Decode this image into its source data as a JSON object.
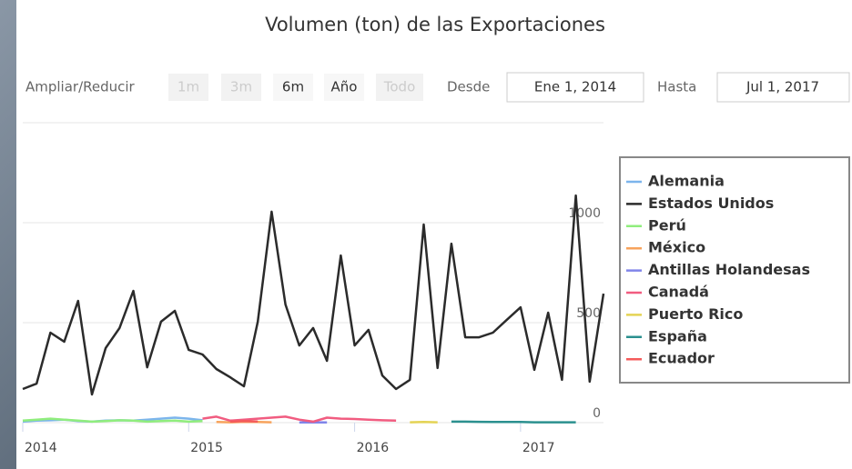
{
  "chart_data": {
    "type": "line",
    "title": "Volumen (ton) de las Exportaciones",
    "range_selector": {
      "zoom_label": "Ampliar/Reducir",
      "buttons": [
        {
          "label": "1m",
          "enabled": false
        },
        {
          "label": "3m",
          "enabled": false
        },
        {
          "label": "6m",
          "enabled": true
        },
        {
          "label": "Año",
          "enabled": true
        },
        {
          "label": "Todo",
          "enabled": false
        }
      ],
      "from_label": "Desde",
      "from": "Ene 1, 2014",
      "to_label": "Hasta",
      "to": "Jul 1, 2017"
    },
    "x": [
      "2014-01",
      "2014-02",
      "2014-03",
      "2014-04",
      "2014-05",
      "2014-06",
      "2014-07",
      "2014-08",
      "2014-09",
      "2014-10",
      "2014-11",
      "2014-12",
      "2015-01",
      "2015-02",
      "2015-03",
      "2015-04",
      "2015-05",
      "2015-06",
      "2015-07",
      "2015-08",
      "2015-09",
      "2015-10",
      "2015-11",
      "2015-12",
      "2016-01",
      "2016-02",
      "2016-03",
      "2016-04",
      "2016-05",
      "2016-06",
      "2016-07",
      "2016-08",
      "2016-09",
      "2016-10",
      "2016-11",
      "2016-12",
      "2017-01",
      "2017-02",
      "2017-03",
      "2017-04",
      "2017-05",
      "2017-06",
      "2017-07"
    ],
    "xlim": [
      "2014-01",
      "2017-07"
    ],
    "xticks": [
      2014,
      2015,
      2016,
      2017
    ],
    "ylim": [
      0,
      1500
    ],
    "yticks": [
      0,
      500,
      1000
    ],
    "grid": true,
    "legend": "right",
    "series": [
      {
        "name": "Alemania",
        "color": "#7cb5ec",
        "values": [
          5,
          10,
          12,
          15,
          8,
          5,
          10,
          12,
          10,
          15,
          20,
          25,
          20,
          12,
          null,
          null,
          null,
          null,
          null,
          null,
          null,
          null,
          null,
          null,
          null,
          null,
          null,
          null,
          null,
          null,
          null,
          null,
          null,
          null,
          null,
          null,
          null,
          null,
          null,
          null,
          null,
          null,
          null
        ]
      },
      {
        "name": "Estados Unidos",
        "color": "#2b2b2b",
        "values": [
          168,
          195,
          450,
          405,
          609,
          141,
          373,
          473,
          659,
          277,
          505,
          559,
          364,
          341,
          268,
          227,
          182,
          505,
          1055,
          591,
          386,
          473,
          309,
          836,
          386,
          464,
          236,
          168,
          214,
          991,
          273,
          895,
          427,
          427,
          450,
          514,
          577,
          264,
          550,
          214,
          1136,
          205,
          645
        ]
      },
      {
        "name": "Perú",
        "color": "#90ed7d",
        "values": [
          10,
          15,
          20,
          15,
          10,
          5,
          8,
          12,
          10,
          5,
          8,
          10,
          5,
          8,
          null,
          null,
          null,
          null,
          null,
          null,
          null,
          null,
          null,
          null,
          null,
          null,
          null,
          null,
          null,
          null,
          null,
          null,
          null,
          null,
          null,
          null,
          null,
          null,
          null,
          null,
          null,
          null,
          null
        ]
      },
      {
        "name": "México",
        "color": "#f7a35c",
        "values": [
          null,
          null,
          null,
          null,
          null,
          null,
          null,
          null,
          null,
          null,
          null,
          null,
          null,
          null,
          3,
          2,
          4,
          3,
          2,
          null,
          null,
          null,
          null,
          null,
          null,
          null,
          null,
          null,
          null,
          null,
          null,
          null,
          null,
          null,
          null,
          null,
          null,
          null,
          null,
          null,
          null,
          null,
          null
        ]
      },
      {
        "name": "Antillas Holandesas",
        "color": "#8085e9",
        "values": [
          null,
          null,
          null,
          null,
          null,
          null,
          null,
          null,
          null,
          null,
          null,
          null,
          null,
          null,
          null,
          null,
          null,
          null,
          null,
          null,
          1,
          2,
          1,
          null,
          null,
          null,
          null,
          null,
          null,
          null,
          null,
          null,
          null,
          null,
          null,
          null,
          null,
          null,
          null,
          null,
          null,
          null,
          null
        ]
      },
      {
        "name": "Canadá",
        "color": "#f15c80",
        "values": [
          null,
          null,
          null,
          null,
          null,
          null,
          null,
          null,
          null,
          null,
          null,
          null,
          null,
          20,
          30,
          10,
          15,
          20,
          25,
          30,
          15,
          5,
          25,
          20,
          18,
          15,
          12,
          10,
          null,
          null,
          null,
          null,
          null,
          null,
          null,
          null,
          null,
          null,
          null,
          null,
          null,
          null,
          null
        ]
      },
      {
        "name": "Puerto Rico",
        "color": "#e4d354",
        "values": [
          null,
          null,
          null,
          null,
          null,
          null,
          null,
          null,
          null,
          null,
          null,
          null,
          null,
          null,
          null,
          null,
          null,
          null,
          null,
          null,
          null,
          null,
          null,
          null,
          null,
          null,
          null,
          null,
          2,
          3,
          2,
          null,
          null,
          null,
          null,
          null,
          null,
          null,
          null,
          null,
          null,
          null,
          null
        ]
      },
      {
        "name": "España",
        "color": "#2b908f",
        "values": [
          null,
          null,
          null,
          null,
          null,
          null,
          null,
          null,
          null,
          null,
          null,
          null,
          null,
          null,
          null,
          null,
          null,
          null,
          null,
          null,
          null,
          null,
          null,
          null,
          null,
          null,
          null,
          null,
          null,
          null,
          null,
          5,
          5,
          4,
          3,
          3,
          3,
          2,
          2,
          2,
          2,
          null,
          null
        ]
      },
      {
        "name": "Ecuador",
        "color": "#f45b5b",
        "values": [
          null,
          null,
          null,
          null,
          null,
          null,
          null,
          null,
          null,
          null,
          null,
          null,
          null,
          null,
          null,
          5,
          8,
          6,
          null,
          null,
          null,
          null,
          null,
          null,
          null,
          null,
          null,
          null,
          null,
          null,
          null,
          null,
          null,
          null,
          null,
          null,
          null,
          null,
          null,
          null,
          null,
          null,
          null
        ]
      }
    ]
  }
}
